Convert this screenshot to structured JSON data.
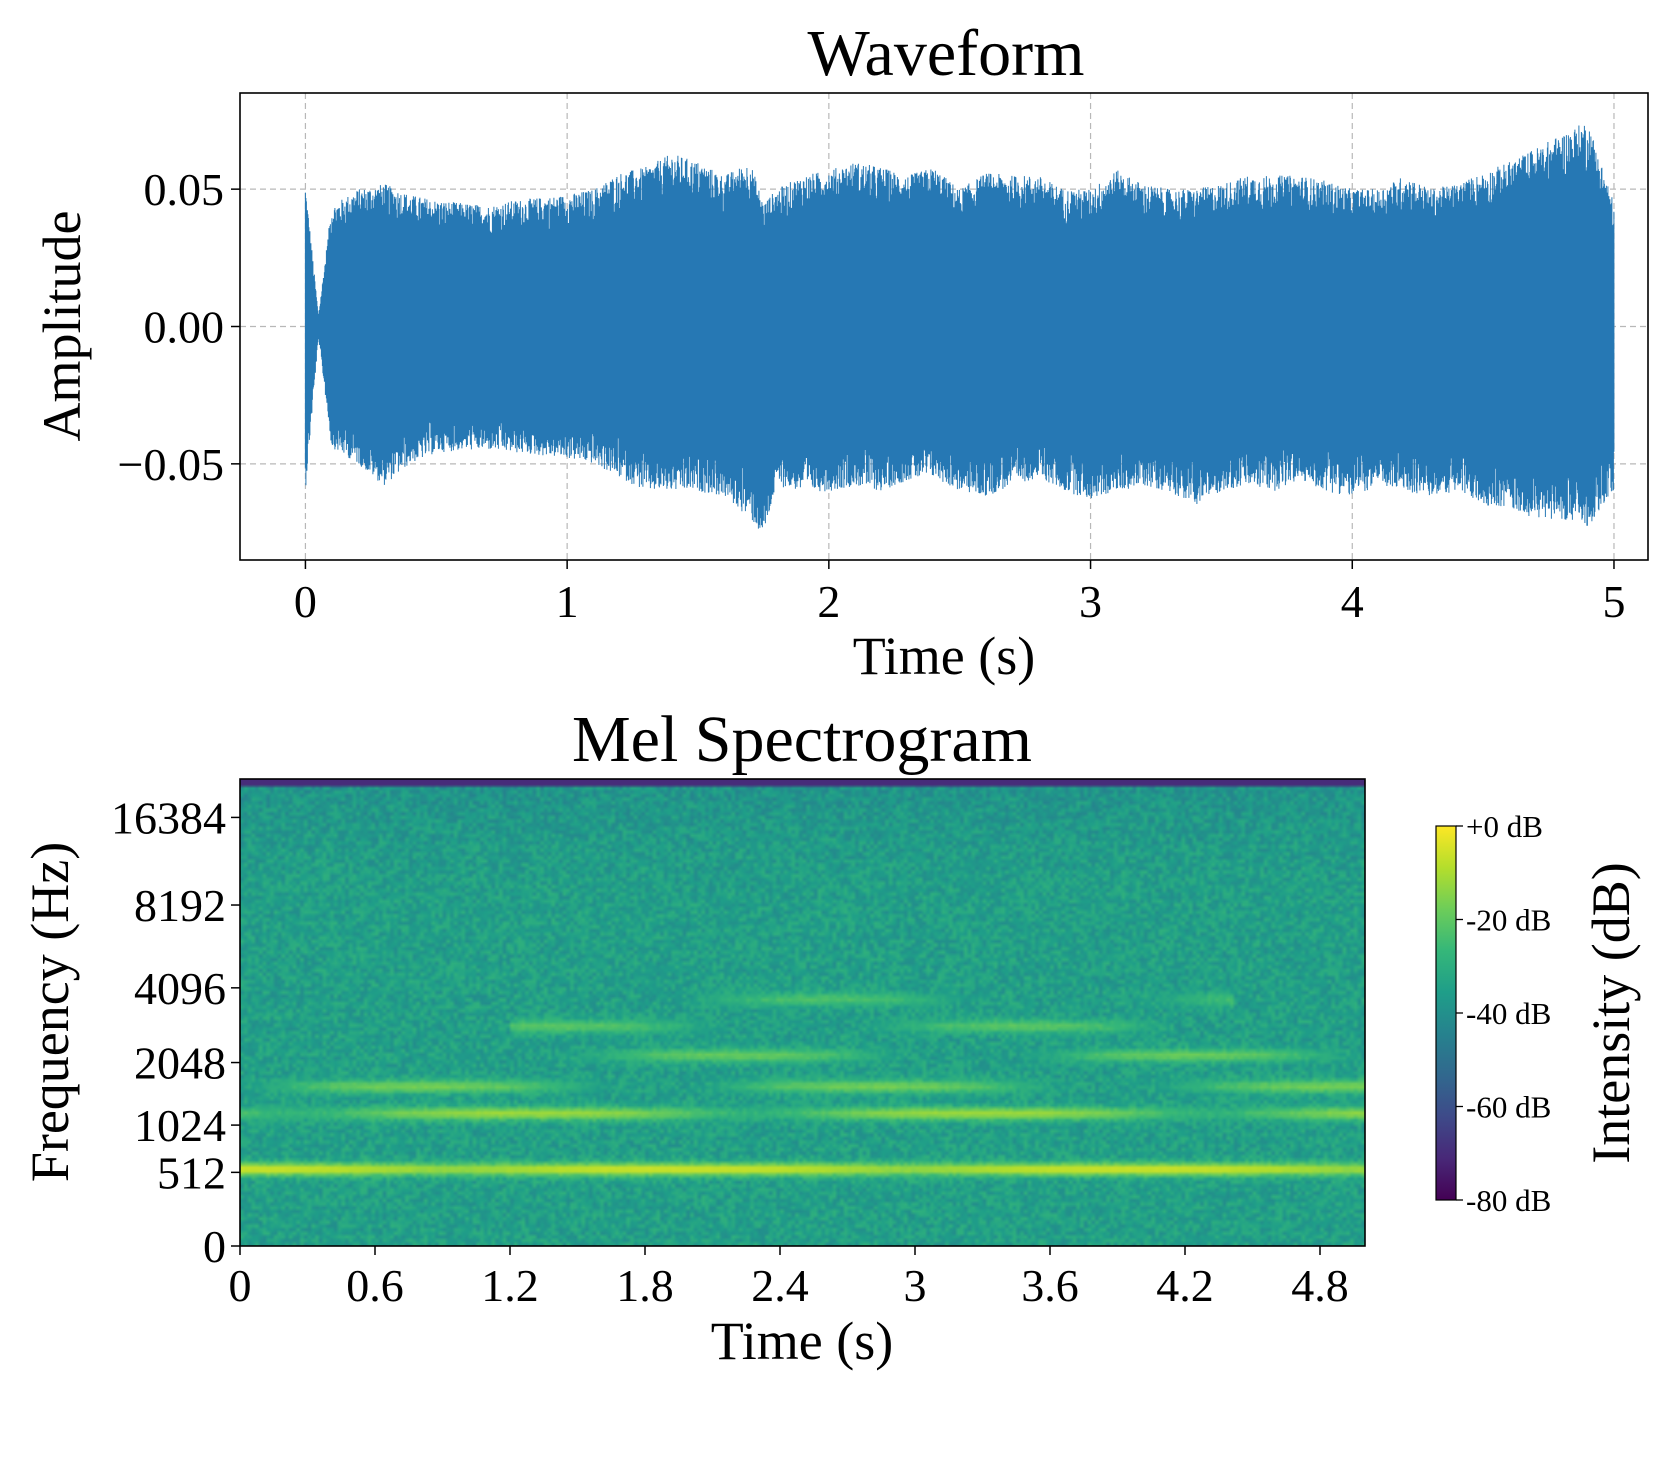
{
  "chart_data": [
    {
      "type": "line",
      "title": "Waveform",
      "xlabel": "Time (s)",
      "ylabel": "Amplitude",
      "xlim": [
        -0.25,
        5.13
      ],
      "ylim": [
        -0.085,
        0.085
      ],
      "xticks": [
        0,
        1,
        2,
        3,
        4,
        5
      ],
      "xtick_labels": [
        "0",
        "1",
        "2",
        "3",
        "4",
        "5"
      ],
      "yticks": [
        -0.05,
        0,
        0.05
      ],
      "ytick_labels": [
        "−0.05",
        "0.00",
        "0.05"
      ],
      "grid": true,
      "color": "#2678b4",
      "series": [
        {
          "x": [
            0,
            0.05,
            0.1,
            0.2,
            0.3,
            0.4,
            0.5,
            0.6,
            0.7,
            0.8,
            0.9,
            1.0,
            1.1,
            1.2,
            1.3,
            1.4,
            1.5,
            1.6,
            1.7,
            1.75,
            1.8,
            1.9,
            2.0,
            2.1,
            2.2,
            2.3,
            2.4,
            2.5,
            2.6,
            2.7,
            2.8,
            2.9,
            3.0,
            3.1,
            3.2,
            3.3,
            3.4,
            3.5,
            3.6,
            3.7,
            3.8,
            3.9,
            4.0,
            4.1,
            4.2,
            4.3,
            4.4,
            4.5,
            4.6,
            4.7,
            4.8,
            4.9,
            5.0
          ],
          "upper": [
            0.052,
            0.004,
            0.044,
            0.05,
            0.052,
            0.048,
            0.046,
            0.045,
            0.044,
            0.046,
            0.047,
            0.048,
            0.05,
            0.056,
            0.058,
            0.063,
            0.06,
            0.055,
            0.06,
            0.045,
            0.05,
            0.055,
            0.057,
            0.06,
            0.058,
            0.055,
            0.058,
            0.05,
            0.056,
            0.055,
            0.055,
            0.05,
            0.05,
            0.057,
            0.052,
            0.05,
            0.05,
            0.052,
            0.055,
            0.055,
            0.055,
            0.053,
            0.05,
            0.05,
            0.055,
            0.05,
            0.052,
            0.056,
            0.06,
            0.065,
            0.07,
            0.075,
            0.045
          ],
          "lower": [
            -0.06,
            -0.004,
            -0.044,
            -0.05,
            -0.058,
            -0.05,
            -0.046,
            -0.045,
            -0.045,
            -0.046,
            -0.047,
            -0.048,
            -0.05,
            -0.055,
            -0.06,
            -0.06,
            -0.06,
            -0.062,
            -0.07,
            -0.077,
            -0.058,
            -0.06,
            -0.06,
            -0.058,
            -0.06,
            -0.056,
            -0.055,
            -0.06,
            -0.062,
            -0.058,
            -0.055,
            -0.06,
            -0.063,
            -0.06,
            -0.058,
            -0.06,
            -0.065,
            -0.06,
            -0.058,
            -0.06,
            -0.056,
            -0.06,
            -0.062,
            -0.058,
            -0.06,
            -0.062,
            -0.06,
            -0.065,
            -0.066,
            -0.07,
            -0.07,
            -0.073,
            -0.06
          ]
        }
      ]
    },
    {
      "type": "heatmap",
      "title": "Mel Spectrogram",
      "xlabel": "Time (s)",
      "ylabel": "Frequency (Hz)",
      "xlim": [
        0,
        5
      ],
      "xticks": [
        0,
        0.6,
        1.2,
        1.8,
        2.4,
        3,
        3.6,
        4.2,
        4.8
      ],
      "xtick_labels": [
        "0",
        "0.6",
        "1.2",
        "1.8",
        "2.4",
        "3",
        "3.6",
        "4.2",
        "4.8"
      ],
      "yticks": [
        0,
        512,
        1024,
        2048,
        4096,
        8192,
        16384
      ],
      "ytick_labels": [
        "0",
        "512",
        "1024",
        "2048",
        "4096",
        "8192",
        "16384"
      ],
      "y_scale": "mel",
      "colormap": "viridis",
      "colorbar": {
        "label": "Intensity (dB)",
        "range": [
          -80,
          0
        ],
        "ticks": [
          0,
          -20,
          -40,
          -60,
          -80
        ],
        "tick_labels": [
          "+0 dB",
          "-20 dB",
          "-40 dB",
          "-60 dB",
          "-80 dB"
        ]
      },
      "background_db": -35,
      "harmonic_bands": [
        {
          "freq_hz": 540,
          "db": -5,
          "x_range": [
            0,
            5
          ]
        },
        {
          "freq_hz": 1180,
          "db": -12,
          "x_range": [
            0,
            5
          ]
        },
        {
          "freq_hz": 1600,
          "db": -18,
          "x_range": [
            0,
            5
          ]
        },
        {
          "freq_hz": 2200,
          "db": -20,
          "x_range": [
            1.0,
            5
          ]
        },
        {
          "freq_hz": 2900,
          "db": -22,
          "x_range": [
            1.2,
            4.6
          ]
        },
        {
          "freq_hz": 3700,
          "db": -24,
          "x_range": [
            1.4,
            4.4
          ]
        }
      ]
    }
  ]
}
